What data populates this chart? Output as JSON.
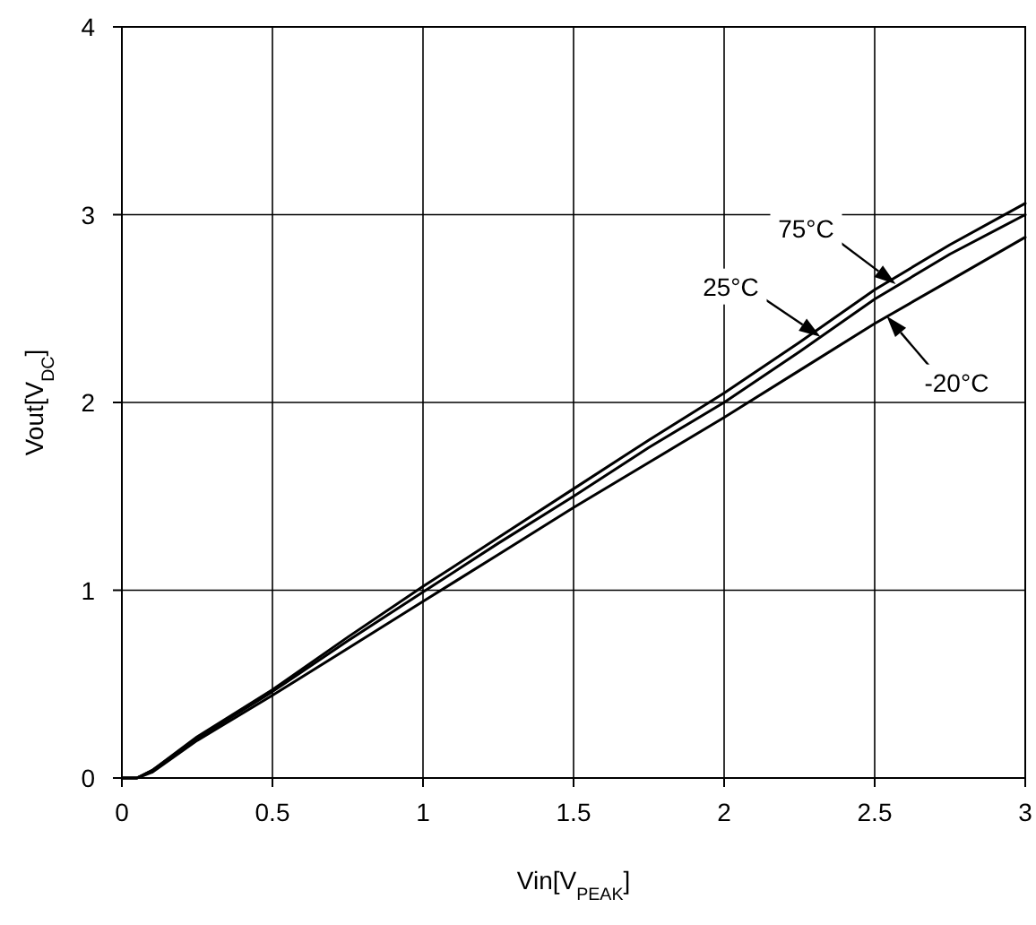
{
  "chart_data": {
    "type": "line",
    "xlabel": "Vin[V$_{PEAK}$]",
    "ylabel": "Vout[V$_{DC}$]",
    "x": [
      0,
      0.05,
      0.1,
      0.25,
      0.5,
      0.75,
      1,
      1.25,
      1.5,
      1.75,
      2,
      2.25,
      2.5,
      2.75,
      3
    ],
    "series": [
      {
        "color": "#000000",
        "values": [
          0,
          0,
          0.04,
          0.22,
          0.47,
          0.75,
          1.02,
          1.28,
          1.54,
          1.8,
          2.05,
          2.32,
          2.6,
          2.84,
          3.06
        ]
      },
      {
        "color": "#000000",
        "values": [
          0,
          0,
          0.04,
          0.21,
          0.46,
          0.73,
          0.99,
          1.25,
          1.5,
          1.76,
          2.0,
          2.27,
          2.55,
          2.79,
          3.0
        ]
      },
      {
        "color": "#000000",
        "values": [
          0,
          0,
          0.03,
          0.2,
          0.44,
          0.69,
          0.94,
          1.19,
          1.44,
          1.68,
          1.92,
          2.17,
          2.42,
          2.65,
          2.88
        ]
      }
    ],
    "xlim": [
      0,
      3
    ],
    "xticks": [
      0,
      0.5,
      1,
      1.5,
      2,
      2.5,
      3
    ],
    "ylim": [
      0,
      4
    ],
    "yticks": [
      0,
      1,
      2,
      3,
      4
    ],
    "grid": true,
    "marker": "none",
    "line_style": "solid",
    "annotations": [
      {
        "text": "75°C",
        "x": 2.57,
        "y": 2.63
      },
      {
        "text": "25°C",
        "x": 2.32,
        "y": 2.35
      },
      {
        "text": "-20°C",
        "x": 2.54,
        "y": 2.46
      }
    ]
  }
}
